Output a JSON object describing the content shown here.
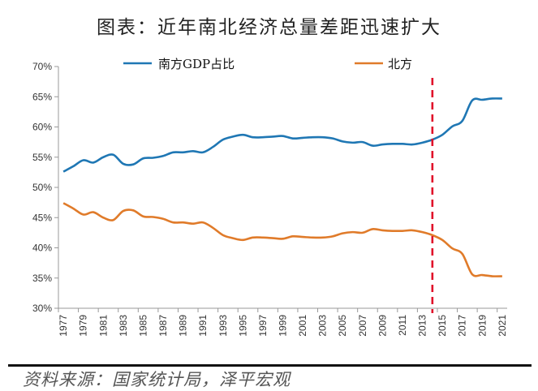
{
  "title": "图表：近年南北经济总量差距迅速扩大",
  "source": "资料来源：国家统计局，泽平宏观",
  "chart_data": {
    "type": "line",
    "title": "图表：近年南北经济总量差距迅速扩大",
    "xlabel": "",
    "ylabel": "",
    "ylim": [
      30,
      70
    ],
    "yticks": [
      "30%",
      "35%",
      "40%",
      "45%",
      "50%",
      "55%",
      "60%",
      "65%",
      "70%"
    ],
    "ytick_values": [
      30,
      35,
      40,
      45,
      50,
      55,
      60,
      65,
      70
    ],
    "x": [
      1977,
      1978,
      1979,
      1980,
      1981,
      1982,
      1983,
      1984,
      1985,
      1986,
      1987,
      1988,
      1989,
      1990,
      1991,
      1992,
      1993,
      1994,
      1995,
      1996,
      1997,
      1998,
      1999,
      2000,
      2001,
      2002,
      2003,
      2004,
      2005,
      2006,
      2007,
      2008,
      2009,
      2010,
      2011,
      2012,
      2013,
      2014,
      2015,
      2016,
      2017,
      2018,
      2019,
      2020,
      2021
    ],
    "xtick_labels": [
      "1977",
      "1979",
      "1981",
      "1983",
      "1985",
      "1987",
      "1989",
      "1991",
      "1993",
      "1995",
      "1997",
      "1999",
      "2001",
      "2003",
      "2005",
      "2007",
      "2009",
      "2011",
      "2013",
      "2015",
      "2017",
      "2019",
      "2021"
    ],
    "grid": false,
    "legend": "top",
    "series": [
      {
        "name": "南方GDP占比",
        "color": "#1f77b4",
        "values": [
          52.6,
          53.5,
          54.5,
          54.1,
          55.0,
          55.4,
          53.9,
          53.8,
          54.8,
          54.9,
          55.2,
          55.8,
          55.8,
          56.0,
          55.8,
          56.7,
          57.9,
          58.4,
          58.7,
          58.3,
          58.3,
          58.4,
          58.5,
          58.1,
          58.2,
          58.3,
          58.3,
          58.1,
          57.6,
          57.4,
          57.5,
          56.9,
          57.1,
          57.2,
          57.2,
          57.1,
          57.4,
          57.9,
          58.7,
          60.1,
          61.0,
          64.4,
          64.5,
          64.7,
          64.7
        ]
      },
      {
        "name": "北方",
        "color": "#e07b2a",
        "values": [
          47.4,
          46.5,
          45.5,
          45.9,
          45.0,
          44.6,
          46.1,
          46.2,
          45.2,
          45.1,
          44.8,
          44.2,
          44.2,
          44.0,
          44.2,
          43.3,
          42.1,
          41.6,
          41.3,
          41.7,
          41.7,
          41.6,
          41.5,
          41.9,
          41.8,
          41.7,
          41.7,
          41.9,
          42.4,
          42.6,
          42.5,
          43.1,
          42.9,
          42.8,
          42.8,
          42.9,
          42.6,
          42.1,
          41.3,
          39.9,
          39.0,
          35.6,
          35.5,
          35.3,
          35.3
        ]
      }
    ],
    "annotations": [
      {
        "type": "vertical-dashed-line",
        "x": 2014,
        "color": "#e0102a"
      }
    ]
  }
}
